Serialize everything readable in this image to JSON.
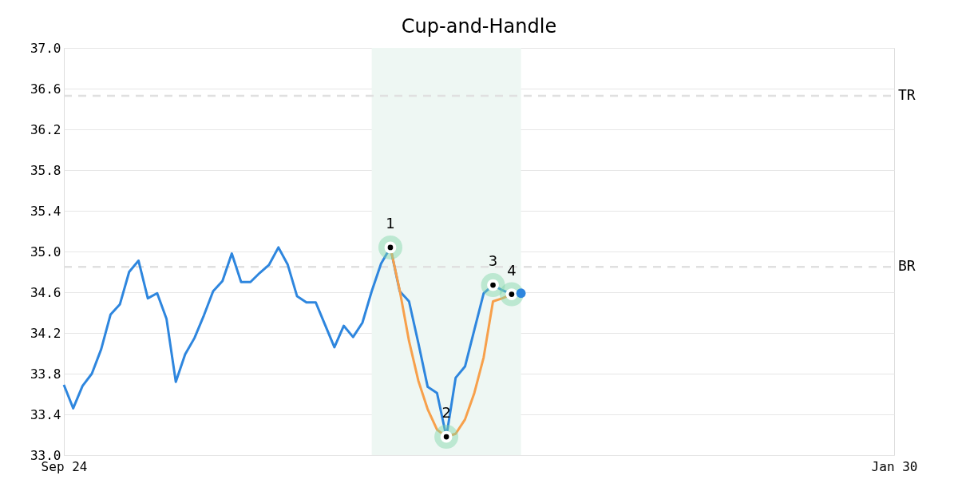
{
  "chart_data": {
    "type": "line",
    "title": "Cup-and-Handle",
    "categories": [
      "Sep 24",
      null,
      null,
      null,
      null,
      null,
      null,
      null,
      null,
      null,
      null,
      null,
      null,
      null,
      null,
      null,
      null,
      null,
      null,
      null,
      null,
      null,
      null,
      null,
      null,
      null,
      null,
      null,
      null,
      null,
      null,
      null,
      null,
      null,
      null,
      null,
      null,
      null,
      null,
      null,
      null,
      null,
      null,
      null,
      null,
      null,
      null,
      null,
      null,
      null,
      null,
      null,
      null,
      null,
      null,
      null,
      null,
      null,
      null,
      null,
      null,
      null,
      null,
      null,
      null,
      null,
      null,
      null,
      null,
      null,
      null,
      null,
      null,
      null,
      null,
      null,
      null,
      null,
      null,
      null,
      null,
      null,
      null,
      null,
      null,
      null,
      null,
      null,
      null,
      "Jan 30"
    ],
    "ylim": [
      33.0,
      37.0
    ],
    "yticks": [
      {
        "value": 33,
        "label": "33.0"
      },
      {
        "value": 33.4,
        "label": "33.4"
      },
      {
        "value": 33.8,
        "label": "33.8"
      },
      {
        "value": 34.2,
        "label": "34.2"
      },
      {
        "value": 34.6,
        "label": "34.6"
      },
      {
        "value": 35,
        "label": "35.0"
      },
      {
        "value": 35.4,
        "label": "35.4"
      },
      {
        "value": 35.8,
        "label": "35.8"
      },
      {
        "value": 36.2,
        "label": "36.2"
      },
      {
        "value": 36.6,
        "label": "36.6"
      },
      {
        "value": 37,
        "label": "37.0"
      }
    ],
    "grid": "y",
    "series": [
      {
        "color": "#2e86de",
        "marker": "none",
        "values": [
          33.69,
          33.46,
          33.68,
          33.8,
          34.04,
          34.38,
          34.48,
          34.8,
          34.91,
          34.54,
          34.59,
          34.34,
          33.72,
          33.99,
          34.15,
          34.37,
          34.61,
          34.71,
          34.98,
          34.7,
          34.7,
          34.79,
          34.87,
          35.04,
          34.87,
          34.56,
          34.5,
          34.5,
          34.28,
          34.06,
          34.27,
          34.16,
          34.3,
          34.61,
          34.88,
          35.04,
          34.61,
          34.51,
          34.1,
          33.67,
          33.61,
          33.18,
          33.76,
          33.87,
          34.23,
          34.59,
          34.67,
          34.62,
          34.58,
          34.59,
          null,
          null,
          null,
          null,
          null,
          null,
          null,
          null,
          null,
          null,
          null,
          null,
          null,
          null,
          null,
          null,
          null,
          null,
          null,
          null,
          null,
          null,
          null,
          null,
          null,
          null,
          null,
          null,
          null,
          null,
          null,
          null,
          null,
          null,
          null,
          null,
          null,
          null,
          null,
          null
        ]
      },
      {
        "color": "#f7a04b",
        "marker": "none",
        "values": [
          null,
          null,
          null,
          null,
          null,
          null,
          null,
          null,
          null,
          null,
          null,
          null,
          null,
          null,
          null,
          null,
          null,
          null,
          null,
          null,
          null,
          null,
          null,
          null,
          null,
          null,
          null,
          null,
          null,
          null,
          null,
          null,
          null,
          null,
          null,
          35.04,
          34.62,
          34.12,
          33.73,
          33.45,
          33.25,
          33.18,
          33.21,
          33.35,
          33.61,
          33.96,
          34.51,
          34.54,
          34.58,
          null,
          null,
          null,
          null,
          null,
          null,
          null,
          null,
          null,
          null,
          null,
          null,
          null,
          null,
          null,
          null,
          null,
          null,
          null,
          null,
          null,
          null,
          null,
          null,
          null,
          null,
          null,
          null,
          null,
          null,
          null,
          null,
          null,
          null,
          null,
          null,
          null,
          null,
          null,
          null,
          null
        ]
      },
      {
        "type": "scatter",
        "color": "#000000",
        "marker": "circle",
        "values": [
          null,
          null,
          null,
          null,
          null,
          null,
          null,
          null,
          null,
          null,
          null,
          null,
          null,
          null,
          null,
          null,
          null,
          null,
          null,
          null,
          null,
          null,
          null,
          null,
          null,
          null,
          null,
          null,
          null,
          null,
          null,
          null,
          null,
          null,
          null,
          35.04,
          null,
          null,
          null,
          null,
          null,
          33.18,
          null,
          null,
          null,
          null,
          34.67,
          null,
          34.58,
          null,
          null,
          null,
          null,
          null,
          null,
          null,
          null,
          null,
          null,
          null,
          null,
          null,
          null,
          null,
          null,
          null,
          null,
          null,
          null,
          null,
          null,
          null,
          null,
          null,
          null,
          null,
          null,
          null,
          null,
          null,
          null,
          null,
          null,
          null,
          null,
          null,
          null,
          null,
          null,
          null
        ]
      },
      {
        "type": "scatter",
        "color": "#2e86de",
        "marker": "circle",
        "values": [
          null,
          null,
          null,
          null,
          null,
          null,
          null,
          null,
          null,
          null,
          null,
          null,
          null,
          null,
          null,
          null,
          null,
          null,
          null,
          null,
          null,
          null,
          null,
          null,
          null,
          null,
          null,
          null,
          null,
          null,
          null,
          null,
          null,
          null,
          null,
          null,
          null,
          null,
          null,
          null,
          null,
          null,
          null,
          null,
          null,
          null,
          null,
          null,
          null,
          34.59,
          null,
          null,
          null,
          null,
          null,
          null,
          null,
          null,
          null,
          null,
          null,
          null,
          null,
          null,
          null,
          null,
          null,
          null,
          null,
          null,
          null,
          null,
          null,
          null,
          null,
          null,
          null,
          null,
          null,
          null,
          null,
          null,
          null,
          null,
          null,
          null,
          null,
          null,
          null,
          null
        ]
      }
    ],
    "annotations": [
      "1",
      "2",
      "3",
      "4"
    ],
    "ref_lines": [
      {
        "axis": "y",
        "value": 36.53,
        "label": "TR",
        "color": "#e0e0e0",
        "line_style": "dashed"
      },
      {
        "axis": "y",
        "value": 34.85,
        "label": "BR",
        "color": "#e0e0e0",
        "line_style": "dashed"
      }
    ]
  }
}
